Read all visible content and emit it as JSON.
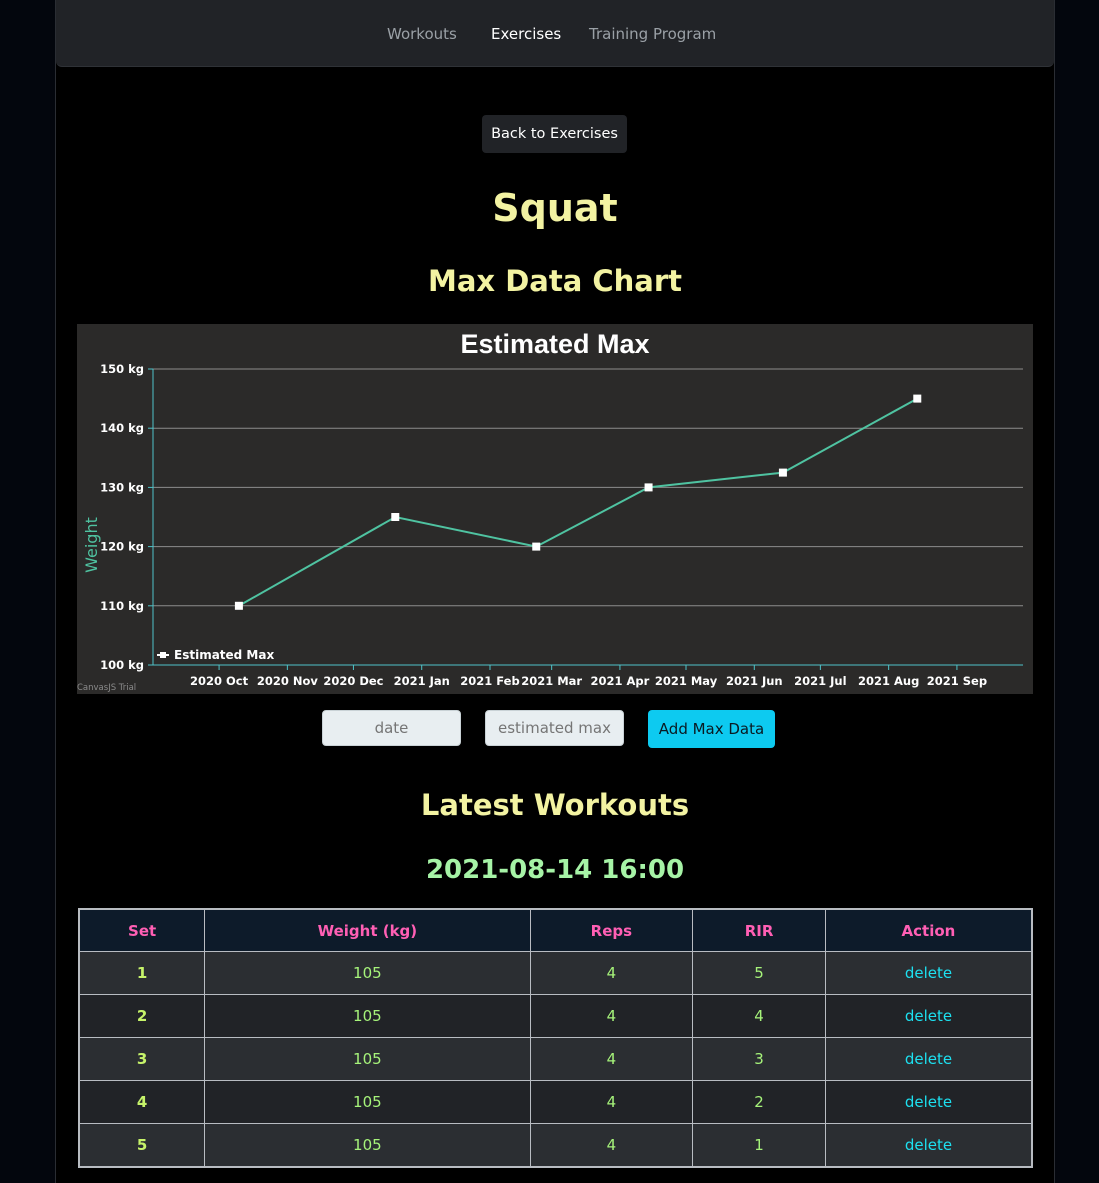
{
  "nav": {
    "items": [
      {
        "label": "Workouts",
        "active": false
      },
      {
        "label": "Exercises",
        "active": true
      },
      {
        "label": "Training Program",
        "active": false
      }
    ]
  },
  "back_button": "Back to Exercises",
  "exercise_name": "Squat",
  "max_chart_heading": "Max Data Chart",
  "chart_data": {
    "type": "line",
    "title": "Estimated Max",
    "ylabel": "Weight",
    "y_unit": "kg",
    "ylim": [
      100,
      150
    ],
    "y_ticks": [
      100,
      110,
      120,
      130,
      140,
      150
    ],
    "x_ticks": [
      "2020 Oct",
      "2020 Nov",
      "2020 Dec",
      "2021 Jan",
      "2021 Feb",
      "2021 Mar",
      "2021 Apr",
      "2021 May",
      "2021 Jun",
      "2021 Jul",
      "2021 Aug",
      "2021 Sep"
    ],
    "series": [
      {
        "name": "Estimated Max",
        "color": "#4fc3a1",
        "points": [
          {
            "x": "2020-10-10",
            "y": 110
          },
          {
            "x": "2020-12-20",
            "y": 125
          },
          {
            "x": "2021-02-22",
            "y": 120
          },
          {
            "x": "2021-04-14",
            "y": 130
          },
          {
            "x": "2021-06-14",
            "y": 132.5
          },
          {
            "x": "2021-08-14",
            "y": 145
          }
        ]
      }
    ],
    "grid": true,
    "legend": "bottom-left",
    "watermark": "CanvasJS Trial"
  },
  "form": {
    "date_placeholder": "date",
    "max_placeholder": "estimated max",
    "submit_label": "Add Max Data"
  },
  "latest_heading": "Latest Workouts",
  "workout": {
    "date": "2021-08-14 16:00",
    "columns": [
      "Set",
      "Weight (kg)",
      "Reps",
      "RIR",
      "Action"
    ],
    "rows": [
      {
        "set": "1",
        "weight": "105",
        "reps": "4",
        "rir": "5",
        "action": "delete"
      },
      {
        "set": "2",
        "weight": "105",
        "reps": "4",
        "rir": "4",
        "action": "delete"
      },
      {
        "set": "3",
        "weight": "105",
        "reps": "4",
        "rir": "3",
        "action": "delete"
      },
      {
        "set": "4",
        "weight": "105",
        "reps": "4",
        "rir": "2",
        "action": "delete"
      },
      {
        "set": "5",
        "weight": "105",
        "reps": "4",
        "rir": "1",
        "action": "delete"
      }
    ]
  },
  "colors": {
    "heading": "#f3f3a2",
    "date": "#a6f3a6",
    "table_header_text": "#ff5fb4",
    "accent_button": "#0dcaf0",
    "delete_link": "#1de0f0"
  }
}
